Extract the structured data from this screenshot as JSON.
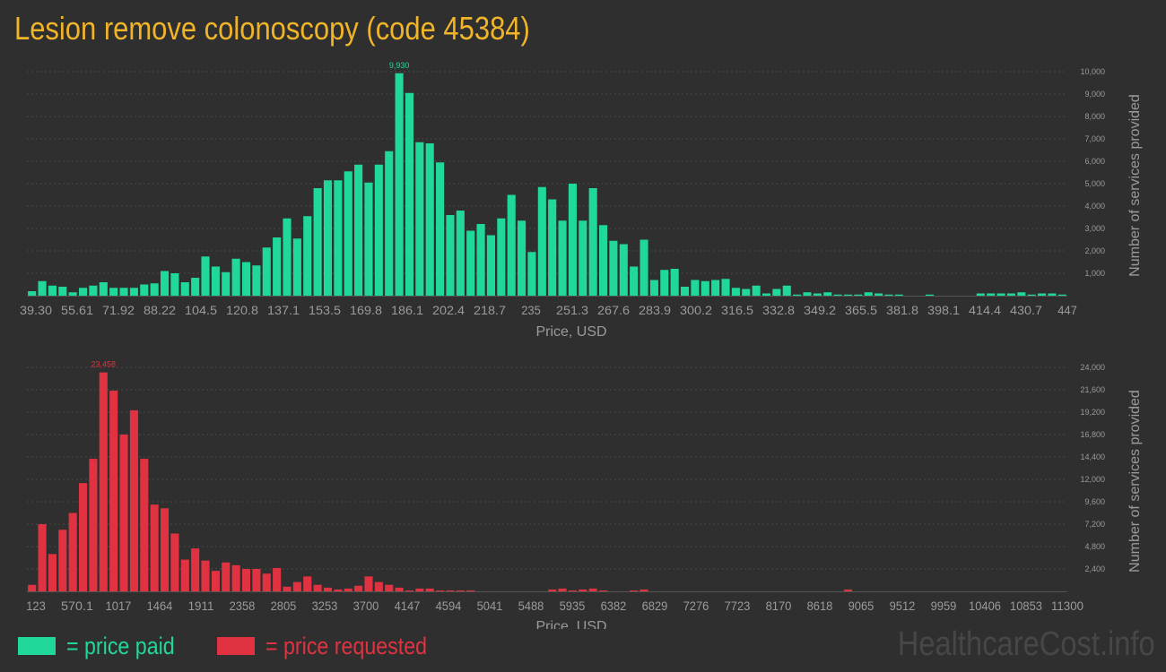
{
  "title": "Lesion remove colonoscopy (code 45384)",
  "colors": {
    "background": "#2f2f2f",
    "title": "#f0b429",
    "paid": "#1fd899",
    "requested": "#e03241",
    "axis_text": "#9a9a9a",
    "grid": "#4a4a4a"
  },
  "legend": {
    "paid_label": "= price paid",
    "requested_label": "= price requested"
  },
  "watermark": "HealthcareCost.info",
  "chart_data": [
    {
      "type": "bar",
      "id": "paid",
      "xlabel": "Price, USD",
      "ylabel": "Number of services provided",
      "x_tick_labels": [
        "39.30",
        "55.61",
        "71.92",
        "88.22",
        "104.5",
        "120.8",
        "137.1",
        "153.5",
        "169.8",
        "186.1",
        "202.4",
        "218.7",
        "235",
        "251.3",
        "267.6",
        "283.9",
        "300.2",
        "316.5",
        "332.8",
        "349.2",
        "365.5",
        "381.8",
        "398.1",
        "414.4",
        "430.7",
        "447"
      ],
      "y_ticks": [
        1000,
        2000,
        3000,
        4000,
        5000,
        6000,
        7000,
        8000,
        9000,
        10000
      ],
      "y_tick_labels": [
        "1,000",
        "2,000",
        "3,000",
        "4,000",
        "5,000",
        "6,000",
        "7,000",
        "8,000",
        "9,000",
        "10,000"
      ],
      "ylim": [
        0,
        10000
      ],
      "grid": true,
      "peak_label": "9,930",
      "values": [
        200,
        650,
        450,
        400,
        150,
        350,
        450,
        600,
        350,
        350,
        350,
        500,
        550,
        1100,
        1000,
        600,
        800,
        1750,
        1300,
        1050,
        1650,
        1500,
        1350,
        2150,
        2600,
        3450,
        2550,
        3550,
        4800,
        5150,
        5150,
        5550,
        5850,
        5050,
        5850,
        6450,
        9930,
        9050,
        6850,
        6800,
        5950,
        3600,
        3800,
        2900,
        3200,
        2700,
        3450,
        4500,
        3350,
        1950,
        4850,
        4300,
        3350,
        5000,
        3350,
        4800,
        3150,
        2450,
        2300,
        1300,
        2500,
        700,
        1150,
        1200,
        400,
        700,
        650,
        700,
        750,
        350,
        300,
        450,
        100,
        300,
        450,
        50,
        150,
        100,
        150,
        50,
        50,
        50,
        150,
        100,
        50,
        50,
        0,
        0,
        50,
        0,
        0,
        0,
        0,
        100,
        100,
        100,
        100,
        150,
        50,
        100,
        100,
        50
      ]
    },
    {
      "type": "bar",
      "id": "requested",
      "xlabel": "Price, USD",
      "ylabel": "Number of services provided",
      "x_tick_labels": [
        "123",
        "570.1",
        "1017",
        "1464",
        "1911",
        "2358",
        "2805",
        "3253",
        "3700",
        "4147",
        "4594",
        "5041",
        "5488",
        "5935",
        "6382",
        "6829",
        "7276",
        "7723",
        "8170",
        "8618",
        "9065",
        "9512",
        "9959",
        "10406",
        "10853",
        "11300"
      ],
      "y_ticks": [
        2400,
        4800,
        7200,
        9600,
        12000,
        14400,
        16800,
        19200,
        21600,
        24000
      ],
      "y_tick_labels": [
        "2,400",
        "4,800",
        "7,200",
        "9,600",
        "12,000",
        "14,400",
        "16,800",
        "19,200",
        "21,600",
        "24,000"
      ],
      "ylim": [
        0,
        24000
      ],
      "grid": true,
      "peak_label": "23,458",
      "values": [
        700,
        7200,
        4000,
        6600,
        8400,
        11600,
        14200,
        23458,
        21500,
        16800,
        19400,
        14200,
        9300,
        8900,
        6200,
        3400,
        4600,
        3300,
        2200,
        3100,
        2800,
        2400,
        2400,
        1900,
        2500,
        500,
        1000,
        1600,
        700,
        400,
        200,
        300,
        600,
        1600,
        1000,
        700,
        400,
        100,
        300,
        300,
        100,
        100,
        100,
        100,
        0,
        0,
        0,
        0,
        0,
        0,
        0,
        200,
        300,
        100,
        200,
        300,
        100,
        0,
        0,
        100,
        200,
        0,
        0,
        0,
        0,
        0,
        0,
        0,
        0,
        0,
        0,
        0,
        0,
        0,
        0,
        0,
        0,
        0,
        0,
        0,
        200,
        0,
        0,
        0,
        0,
        0,
        0,
        0,
        0,
        0,
        0,
        0,
        0,
        0,
        0,
        0,
        0,
        0,
        0,
        0,
        0,
        0
      ]
    }
  ]
}
